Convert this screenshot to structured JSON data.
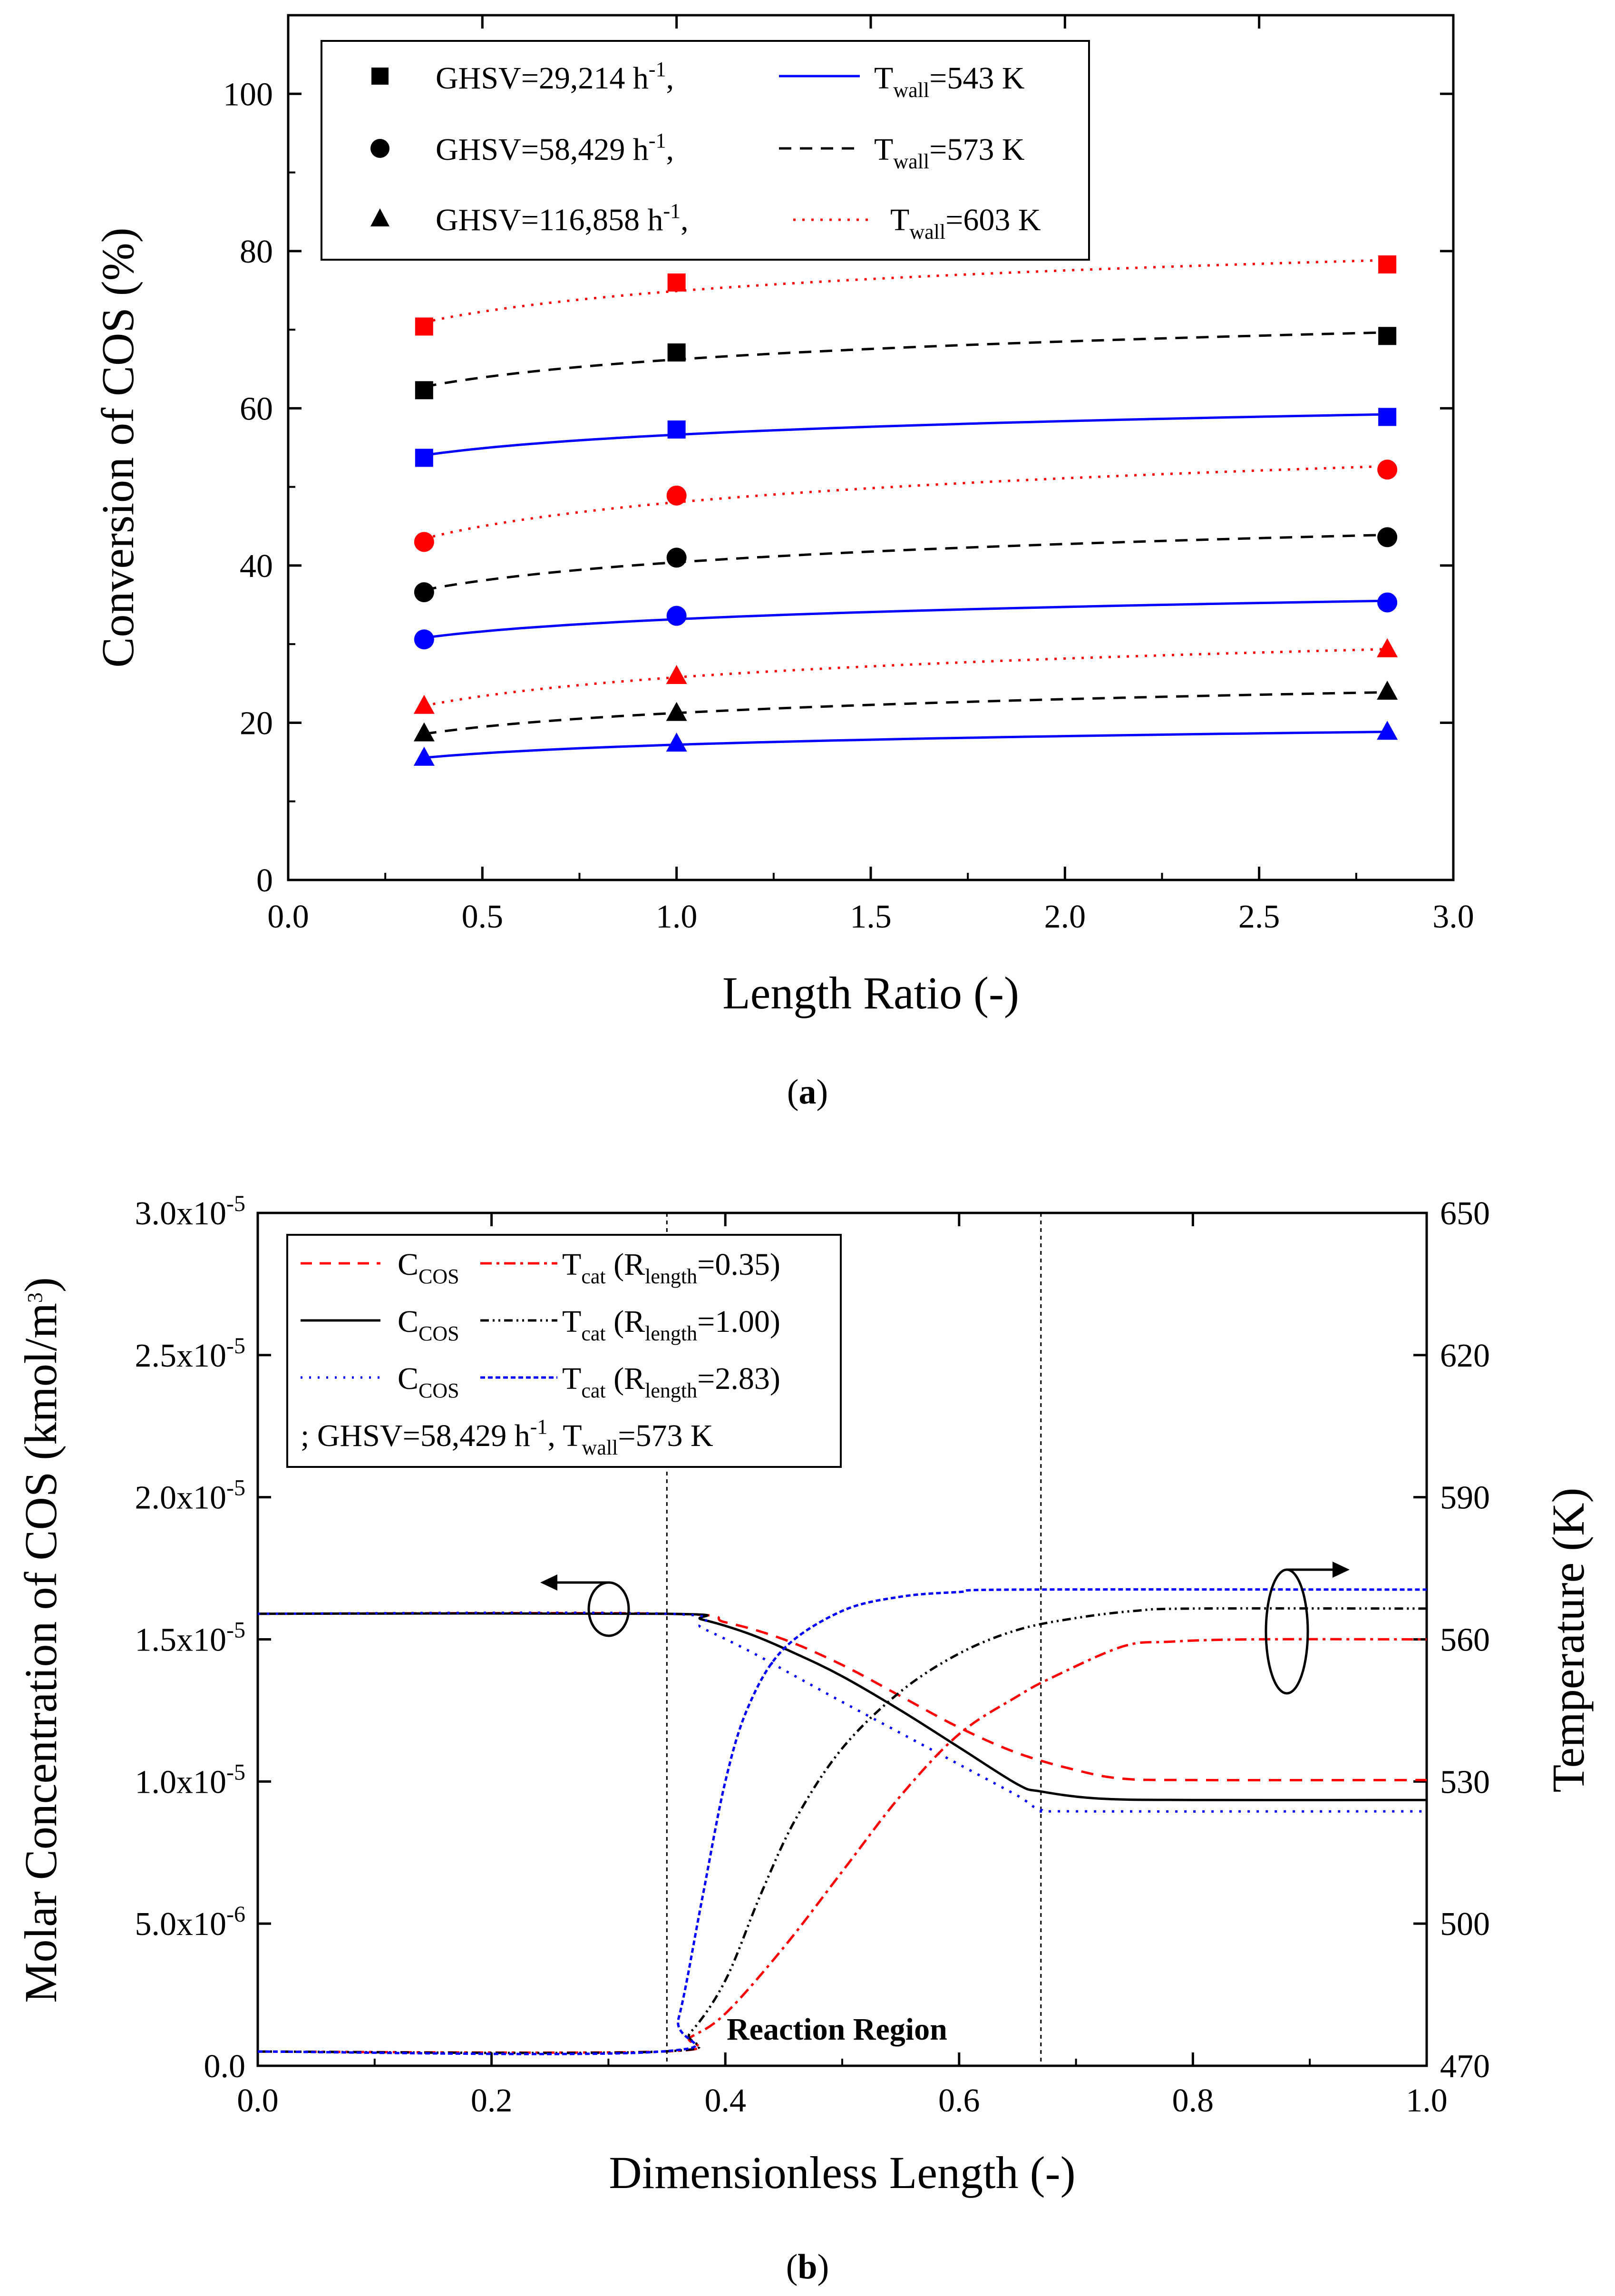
{
  "colors": {
    "blue": "#0000ff",
    "black": "#000000",
    "red": "#ff0000"
  },
  "figure_a": {
    "caption_open": "(",
    "caption_letter": "a",
    "caption_close": ")",
    "legend": [
      {
        "pre": "GHSV=29,214 h",
        "sup": "-1",
        "post": ",",
        "t": "T",
        "t_sub": "wall",
        "t_post": "=543 K",
        "marker": "square",
        "line_color": "blue",
        "dash": "solid"
      },
      {
        "pre": "GHSV=58,429 h",
        "sup": "-1",
        "post": ",",
        "t": "T",
        "t_sub": "wall",
        "t_post": "=573 K",
        "marker": "circle",
        "line_color": "black",
        "dash": "dashed"
      },
      {
        "pre": "GHSV=116,858 h",
        "sup": "-1",
        "post": ",",
        "t": "T",
        "t_sub": "wall",
        "t_post": "=603 K",
        "marker": "triangle",
        "line_color": "red",
        "dash": "dotted"
      }
    ]
  },
  "figure_b": {
    "caption_open": "(",
    "caption_letter": "b",
    "caption_close": ")",
    "annotation": "Reaction Region",
    "legend_rows": [
      {
        "c": "C",
        "c_sub": "COS",
        "t": "T",
        "t_sub": "cat",
        "r_open": " (R",
        "r_sub": "length",
        "r_post": "=0.35)",
        "color": "red"
      },
      {
        "c": "C",
        "c_sub": "COS",
        "t": "T",
        "t_sub": "cat",
        "r_open": " (R",
        "r_sub": "length",
        "r_post": "=1.00)",
        "color": "black"
      },
      {
        "c": "C",
        "c_sub": "COS",
        "t": "T",
        "t_sub": "cat",
        "r_open": " (R",
        "r_sub": "length",
        "r_post": "=2.83)",
        "color": "blue"
      }
    ],
    "legend_note": {
      "pre": "; GHSV=58,429 h",
      "sup": "-1",
      "mid": ", T",
      "sub": "wall",
      "post": "=573 K"
    }
  },
  "chart_data": [
    {
      "type": "scatter",
      "title": "",
      "xlabel": "Length Ratio (-)",
      "ylabel": "Conversion of COS (%)",
      "xlim": [
        0.0,
        3.0
      ],
      "ylim": [
        0,
        110
      ],
      "xticks": [
        0.0,
        0.5,
        1.0,
        1.5,
        2.0,
        2.5,
        3.0
      ],
      "xtick_labels": [
        "0.0",
        "0.5",
        "1.0",
        "1.5",
        "2.0",
        "2.5",
        "3.0"
      ],
      "yticks": [
        0,
        20,
        40,
        60,
        80,
        100
      ],
      "ytick_labels": [
        "0",
        "20",
        "40",
        "60",
        "80",
        "100"
      ],
      "x": [
        0.35,
        1.0,
        2.83
      ],
      "series": [
        {
          "name": "GHSV=29,214, Twall=543 K",
          "marker": "square",
          "color": "blue",
          "dash": "solid",
          "values": [
            53.7,
            57.3,
            58.9
          ]
        },
        {
          "name": "GHSV=29,214, Twall=573 K",
          "marker": "square",
          "color": "black",
          "dash": "dashed",
          "values": [
            62.3,
            67.1,
            69.2
          ]
        },
        {
          "name": "GHSV=29,214, Twall=603 K",
          "marker": "square",
          "color": "red",
          "dash": "dotted",
          "values": [
            70.4,
            76.0,
            78.3
          ]
        },
        {
          "name": "GHSV=58,429, Twall=543 K",
          "marker": "circle",
          "color": "blue",
          "dash": "solid",
          "values": [
            30.6,
            33.6,
            35.3
          ]
        },
        {
          "name": "GHSV=58,429, Twall=573 K",
          "marker": "circle",
          "color": "black",
          "dash": "dashed",
          "values": [
            36.6,
            41.0,
            43.6
          ]
        },
        {
          "name": "GHSV=58,429, Twall=603 K",
          "marker": "circle",
          "color": "red",
          "dash": "dotted",
          "values": [
            43.0,
            48.9,
            52.2
          ]
        },
        {
          "name": "GHSV=116,858, Twall=543 K",
          "marker": "triangle",
          "color": "blue",
          "dash": "solid",
          "values": [
            15.5,
            17.3,
            18.8
          ]
        },
        {
          "name": "GHSV=116,858, Twall=573 K",
          "marker": "triangle",
          "color": "black",
          "dash": "dashed",
          "values": [
            18.6,
            21.2,
            23.9
          ]
        },
        {
          "name": "GHSV=116,858, Twall=603 K",
          "marker": "triangle",
          "color": "red",
          "dash": "dotted",
          "values": [
            22.1,
            25.9,
            29.3
          ]
        }
      ]
    },
    {
      "type": "line",
      "title": "",
      "xlabel": "Dimensionless Length (-)",
      "ylabel": "Molar Concentration of COS (kmol/m",
      "ylabel_sup": "3",
      "ylabel_close": ")",
      "y2label": "Temperature (K)",
      "xlim": [
        0.0,
        1.0
      ],
      "ylim": [
        0,
        3e-05
      ],
      "y2lim": [
        470,
        650
      ],
      "xticks": [
        0.0,
        0.2,
        0.4,
        0.6,
        0.8,
        1.0
      ],
      "xtick_labels": [
        "0.0",
        "0.2",
        "0.4",
        "0.6",
        "0.8",
        "1.0"
      ],
      "yticks": [
        0,
        5e-06,
        1e-05,
        1.5e-05,
        2e-05,
        2.5e-05,
        3e-05
      ],
      "ytick_labels": [
        {
          "base": "0.0",
          "exp": ""
        },
        {
          "base": "5.0x10",
          "exp": "-6"
        },
        {
          "base": "1.0x10",
          "exp": "-5"
        },
        {
          "base": "1.5x10",
          "exp": "-5"
        },
        {
          "base": "2.0x10",
          "exp": "-5"
        },
        {
          "base": "2.5x10",
          "exp": "-5"
        },
        {
          "base": "3.0x10",
          "exp": "-5"
        }
      ],
      "y2ticks": [
        470,
        500,
        530,
        560,
        590,
        620,
        650
      ],
      "y2tick_labels": [
        "470",
        "500",
        "530",
        "560",
        "590",
        "620",
        "650"
      ],
      "reaction_region": [
        0.35,
        0.67
      ],
      "series": [
        {
          "name": "C_COS (R_length=0.35)",
          "axis": "left",
          "color": "red",
          "dash": "dashed",
          "x": [
            0,
            0.35,
            0.4,
            0.45,
            0.5,
            0.55,
            0.6,
            0.65,
            0.7,
            0.74,
            0.8,
            1.0
          ],
          "y": [
            1.59e-05,
            1.59e-05,
            1.56e-05,
            1.5e-05,
            1.41e-05,
            1.3e-05,
            1.19e-05,
            1.1e-05,
            1.04e-05,
            1.01e-05,
            1.005e-05,
            1.005e-05
          ]
        },
        {
          "name": "C_COS (R_length=1.00)",
          "axis": "left",
          "color": "black",
          "dash": "solid",
          "x": [
            0,
            0.35,
            0.38,
            0.42,
            0.46,
            0.5,
            0.55,
            0.6,
            0.65,
            0.67,
            0.72,
            0.8,
            1.0
          ],
          "y": [
            1.59e-05,
            1.59e-05,
            1.57e-05,
            1.52e-05,
            1.45e-05,
            1.37e-05,
            1.25e-05,
            1.12e-05,
            9.9e-06,
            9.65e-06,
            9.4e-06,
            9.35e-06,
            9.35e-06
          ]
        },
        {
          "name": "C_COS (R_length=2.83)",
          "axis": "left",
          "color": "blue",
          "dash": "dotted",
          "x": [
            0,
            0.35,
            0.38,
            0.42,
            0.46,
            0.5,
            0.55,
            0.6,
            0.65,
            0.67,
            0.7,
            1.0
          ],
          "y": [
            1.59e-05,
            1.59e-05,
            1.54e-05,
            1.46e-05,
            1.37e-05,
            1.28e-05,
            1.17e-05,
            1.06e-05,
            9.5e-06,
            9e-06,
            8.95e-06,
            8.95e-06
          ]
        },
        {
          "name": "T_cat (R_length=0.35)",
          "axis": "right",
          "color": "red",
          "dash": "dashdot",
          "x": [
            0,
            0.345,
            0.37,
            0.4,
            0.45,
            0.5,
            0.55,
            0.6,
            0.65,
            0.68,
            0.74,
            0.78,
            0.85,
            1.0
          ],
          "y": [
            473,
            473,
            476,
            481,
            495,
            511,
            527,
            540,
            548,
            552,
            558.5,
            559.5,
            560,
            560
          ]
        },
        {
          "name": "T_cat (R_length=1.00)",
          "axis": "right",
          "color": "black",
          "dash": "dashdotdot",
          "x": [
            0,
            0.345,
            0.37,
            0.4,
            0.43,
            0.46,
            0.5,
            0.55,
            0.6,
            0.65,
            0.7,
            0.75,
            0.8,
            1.0
          ],
          "y": [
            473,
            473,
            477,
            488,
            506,
            522,
            537,
            549,
            557,
            562,
            564.5,
            566,
            566.5,
            566.5
          ]
        },
        {
          "name": "T_cat (R_length=2.83)",
          "axis": "right",
          "color": "blue",
          "dash": "shortdash",
          "x": [
            0,
            0.345,
            0.36,
            0.38,
            0.4,
            0.42,
            0.45,
            0.5,
            0.55,
            0.6,
            0.65,
            1.0
          ],
          "y": [
            473,
            473,
            480,
            505,
            530,
            546,
            558,
            566,
            569,
            570,
            570.5,
            570.5
          ]
        }
      ]
    }
  ]
}
